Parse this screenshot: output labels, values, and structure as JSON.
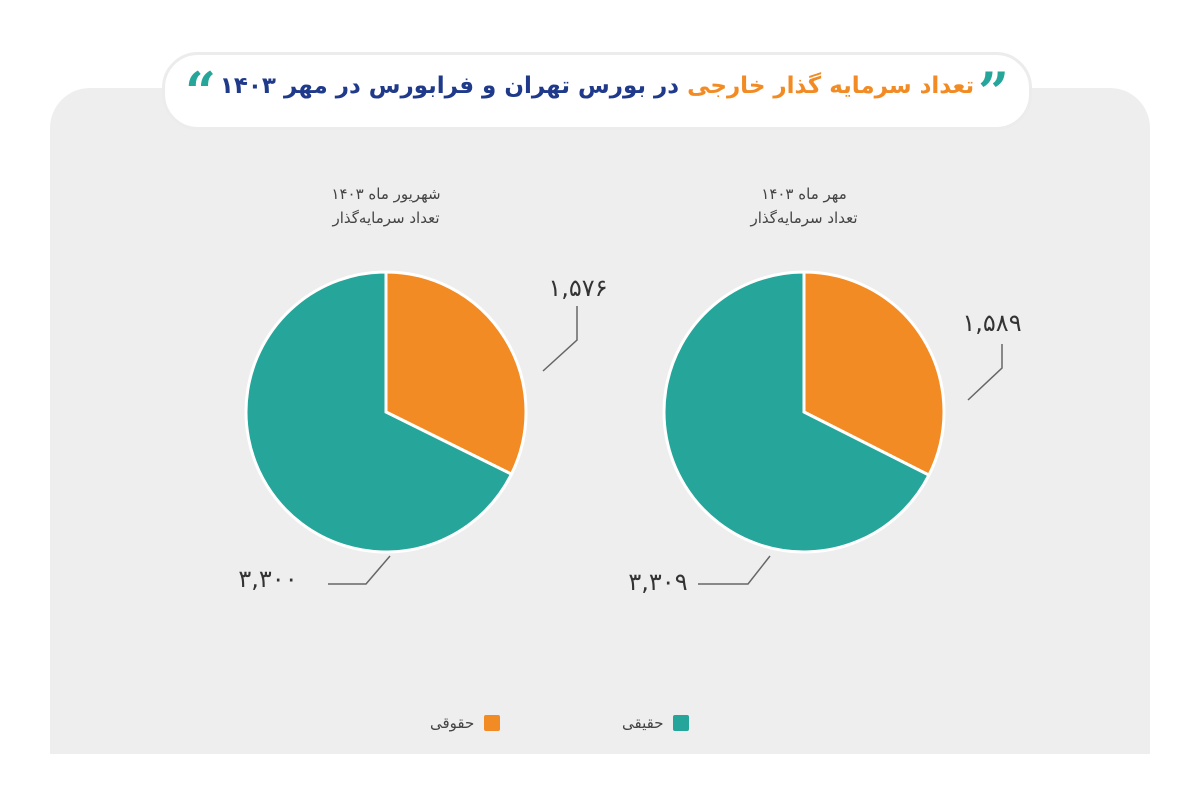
{
  "title": {
    "part1": "تعداد سرمایه گذار خارجی",
    "part2": " در بورس تهران و فرابورس در مهر ۱۴۰۳"
  },
  "colors": {
    "haghighi": "#26a69a",
    "hoghooghi": "#f28b24",
    "title_blue": "#1f3a8a"
  },
  "chart_data": [
    {
      "type": "pie",
      "title_line1": "مهر ماه ۱۴۰۳",
      "title_line2": "تعداد سرمایه‌گذار",
      "slices": [
        {
          "name": "حقوقی",
          "value": 1589,
          "label": "۱,۵۸۹",
          "color": "#f28b24"
        },
        {
          "name": "حقیقی",
          "value": 3309,
          "label": "۳,۳۰۹",
          "color": "#26a69a"
        }
      ]
    },
    {
      "type": "pie",
      "title_line1": "شهریور ماه ۱۴۰۳",
      "title_line2": "تعداد سرمایه‌گذار",
      "slices": [
        {
          "name": "حقوقی",
          "value": 1576,
          "label": "۱,۵۷۶",
          "color": "#f28b24"
        },
        {
          "name": "حقیقی",
          "value": 3300,
          "label": "۳,۳۰۰",
          "color": "#26a69a"
        }
      ]
    }
  ],
  "legend": [
    {
      "label": "حقیقی",
      "color": "#26a69a"
    },
    {
      "label": "حقوقی",
      "color": "#f28b24"
    }
  ]
}
